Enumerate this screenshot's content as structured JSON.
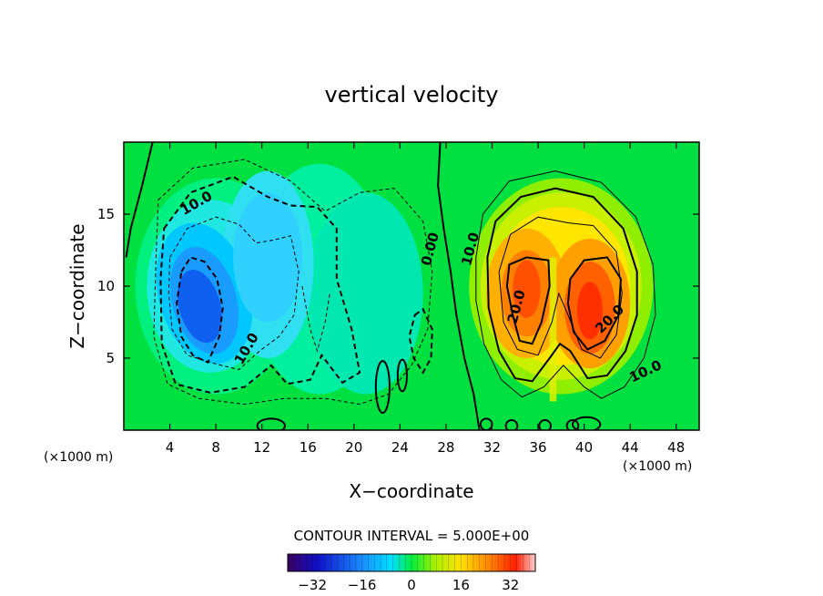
{
  "chart_data": {
    "type": "heatmap",
    "title": "vertical velocity",
    "xlabel": "X−coordinate",
    "ylabel": "Z−coordinate",
    "x_unit_left": "(×1000 m)",
    "x_unit_right": "(×1000 m)",
    "xlim": [
      0,
      50
    ],
    "ylim": [
      0,
      20
    ],
    "x_ticks": [
      4,
      8,
      12,
      16,
      20,
      24,
      28,
      32,
      36,
      40,
      44,
      48
    ],
    "x_tick_labels": [
      "4",
      "8",
      "12",
      "16",
      "20",
      "24",
      "28",
      "32",
      "36",
      "40",
      "44",
      "48"
    ],
    "y_ticks": [
      5,
      10,
      15
    ],
    "y_tick_labels": [
      "5",
      "10",
      "15"
    ],
    "contour_interval_label": "CONTOUR INTERVAL = 5.000E+00",
    "contour_interval": 5,
    "colorbar": {
      "range": [
        -40,
        40
      ],
      "ticks": [
        -32,
        -16,
        0,
        16,
        32
      ],
      "tick_labels": [
        "−32",
        "−16",
        "0",
        "16",
        "32"
      ]
    },
    "features": [
      {
        "kind": "downdraft",
        "x": 7,
        "z": 9,
        "value": -25
      },
      {
        "kind": "downdraft",
        "x": 12.5,
        "z": 12,
        "value": -14
      },
      {
        "kind": "updraft",
        "x": 35,
        "z": 10,
        "value": 25
      },
      {
        "kind": "updraft",
        "x": 40.5,
        "z": 8.5,
        "value": 30
      }
    ],
    "contour_labels": [
      {
        "text": "10.0",
        "x": 6.5,
        "z": 15.5,
        "rotate": -30
      },
      {
        "text": "10.0",
        "x": 11,
        "z": 5.5,
        "rotate": -60
      },
      {
        "text": "0.00",
        "x": 27,
        "z": 12.5,
        "rotate": -75
      },
      {
        "text": "10.0",
        "x": 30.5,
        "z": 12.5,
        "rotate": -75
      },
      {
        "text": "20.0",
        "x": 34.5,
        "z": 8.5,
        "rotate": -75
      },
      {
        "text": "20.0",
        "x": 42.5,
        "z": 7.5,
        "rotate": -45
      },
      {
        "text": "10.0",
        "x": 45.5,
        "z": 3.8,
        "rotate": -25
      }
    ]
  }
}
